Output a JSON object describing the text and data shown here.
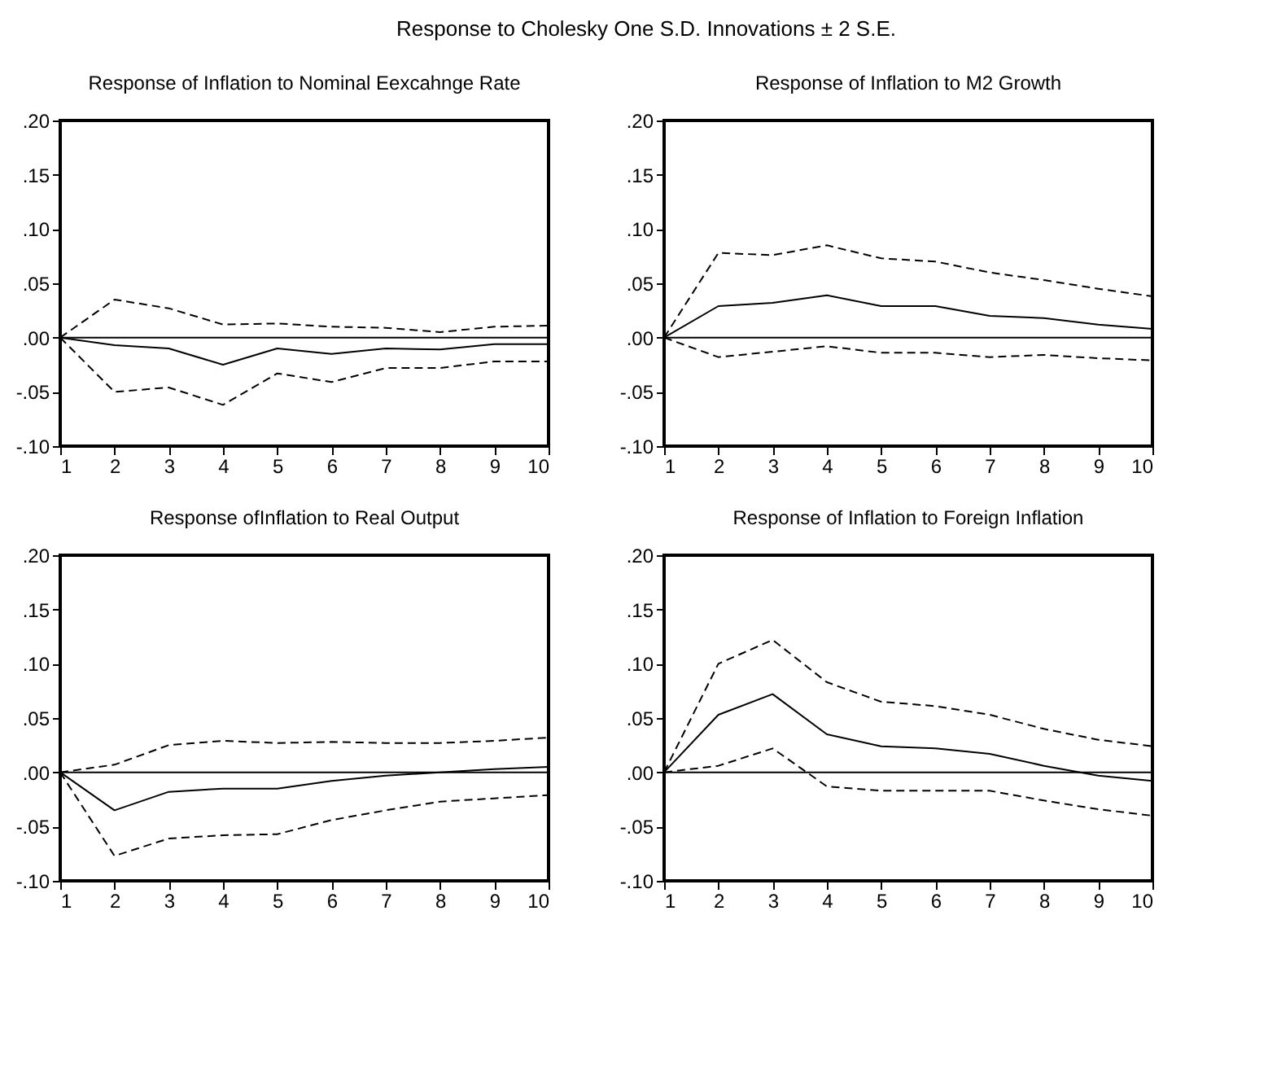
{
  "chart_data": [
    {
      "type": "other",
      "title": "Response to Cholesky One S.D. Innovations ± 2 S.E."
    },
    {
      "type": "line",
      "title": "Response of Inflation to Nominal Eexcahnge Rate",
      "x": [
        1,
        2,
        3,
        4,
        5,
        6,
        7,
        8,
        9,
        10
      ],
      "xlim": [
        1,
        10
      ],
      "xticks": [
        1,
        2,
        3,
        4,
        5,
        6,
        7,
        8,
        9,
        10
      ],
      "ylim": [
        -0.1,
        0.2
      ],
      "yticks": [
        {
          "value": -0.1,
          "label": "-.10"
        },
        {
          "value": -0.05,
          "label": "-.05"
        },
        {
          "value": 0,
          "label": ".00"
        },
        {
          "value": 0.05,
          "label": ".05"
        },
        {
          "value": 0.1,
          "label": ".10"
        },
        {
          "value": 0.15,
          "label": ".15"
        },
        {
          "value": 0.2,
          "label": ".20"
        }
      ],
      "grid": false,
      "marker": "none",
      "series": [
        {
          "color": "#000000",
          "line_style": "solid",
          "values": [
            0,
            -0.007,
            -0.01,
            -0.025,
            -0.01,
            -0.015,
            -0.01,
            -0.011,
            -0.006,
            -0.006
          ]
        },
        {
          "color": "#000000",
          "line_style": "dashed",
          "values": [
            0,
            0.035,
            0.027,
            0.012,
            0.013,
            0.01,
            0.009,
            0.005,
            0.01,
            0.011
          ]
        },
        {
          "color": "#000000",
          "line_style": "dashed",
          "values": [
            0,
            -0.05,
            -0.046,
            -0.062,
            -0.033,
            -0.041,
            -0.028,
            -0.028,
            -0.022,
            -0.022
          ]
        }
      ],
      "ref_lines": [
        {
          "axis": "y",
          "value": 0,
          "color": "#000000"
        }
      ]
    },
    {
      "type": "line",
      "title": "Response of Inflation to M2 Growth",
      "x": [
        1,
        2,
        3,
        4,
        5,
        6,
        7,
        8,
        9,
        10
      ],
      "xlim": [
        1,
        10
      ],
      "xticks": [
        1,
        2,
        3,
        4,
        5,
        6,
        7,
        8,
        9,
        10
      ],
      "ylim": [
        -0.1,
        0.2
      ],
      "yticks": [
        {
          "value": -0.1,
          "label": "-.10"
        },
        {
          "value": -0.05,
          "label": "-.05"
        },
        {
          "value": 0,
          "label": ".00"
        },
        {
          "value": 0.05,
          "label": ".05"
        },
        {
          "value": 0.1,
          "label": ".10"
        },
        {
          "value": 0.15,
          "label": ".15"
        },
        {
          "value": 0.2,
          "label": ".20"
        }
      ],
      "grid": false,
      "marker": "none",
      "series": [
        {
          "color": "#000000",
          "line_style": "solid",
          "values": [
            0,
            0.029,
            0.032,
            0.039,
            0.029,
            0.029,
            0.02,
            0.018,
            0.012,
            0.008
          ]
        },
        {
          "color": "#000000",
          "line_style": "dashed",
          "values": [
            0,
            0.078,
            0.076,
            0.085,
            0.073,
            0.07,
            0.06,
            0.053,
            0.045,
            0.038
          ]
        },
        {
          "color": "#000000",
          "line_style": "dashed",
          "values": [
            0,
            -0.018,
            -0.013,
            -0.008,
            -0.014,
            -0.014,
            -0.018,
            -0.016,
            -0.019,
            -0.021
          ]
        }
      ],
      "ref_lines": [
        {
          "axis": "y",
          "value": 0,
          "color": "#000000"
        }
      ]
    },
    {
      "type": "line",
      "title": "Response ofInflation to Real Output",
      "x": [
        1,
        2,
        3,
        4,
        5,
        6,
        7,
        8,
        9,
        10
      ],
      "xlim": [
        1,
        10
      ],
      "xticks": [
        1,
        2,
        3,
        4,
        5,
        6,
        7,
        8,
        9,
        10
      ],
      "ylim": [
        -0.1,
        0.2
      ],
      "yticks": [
        {
          "value": -0.1,
          "label": "-.10"
        },
        {
          "value": -0.05,
          "label": "-.05"
        },
        {
          "value": 0,
          "label": ".00"
        },
        {
          "value": 0.05,
          "label": ".05"
        },
        {
          "value": 0.1,
          "label": ".10"
        },
        {
          "value": 0.15,
          "label": ".15"
        },
        {
          "value": 0.2,
          "label": ".20"
        }
      ],
      "grid": false,
      "marker": "none",
      "series": [
        {
          "color": "#000000",
          "line_style": "solid",
          "values": [
            0,
            -0.035,
            -0.018,
            -0.015,
            -0.015,
            -0.008,
            -0.003,
            0.0,
            0.003,
            0.005
          ]
        },
        {
          "color": "#000000",
          "line_style": "dashed",
          "values": [
            0,
            0.007,
            0.025,
            0.029,
            0.027,
            0.028,
            0.027,
            0.027,
            0.029,
            0.032
          ]
        },
        {
          "color": "#000000",
          "line_style": "dashed",
          "values": [
            0,
            -0.077,
            -0.061,
            -0.058,
            -0.057,
            -0.044,
            -0.035,
            -0.027,
            -0.024,
            -0.021
          ]
        }
      ],
      "ref_lines": [
        {
          "axis": "y",
          "value": 0,
          "color": "#000000"
        }
      ]
    },
    {
      "type": "line",
      "title": "Response of Inflation to Foreign Inflation",
      "x": [
        1,
        2,
        3,
        4,
        5,
        6,
        7,
        8,
        9,
        10
      ],
      "xlim": [
        1,
        10
      ],
      "xticks": [
        1,
        2,
        3,
        4,
        5,
        6,
        7,
        8,
        9,
        10
      ],
      "ylim": [
        -0.1,
        0.2
      ],
      "yticks": [
        {
          "value": -0.1,
          "label": "-.10"
        },
        {
          "value": -0.05,
          "label": "-.05"
        },
        {
          "value": 0,
          "label": ".00"
        },
        {
          "value": 0.05,
          "label": ".05"
        },
        {
          "value": 0.1,
          "label": ".10"
        },
        {
          "value": 0.15,
          "label": ".15"
        },
        {
          "value": 0.2,
          "label": ".20"
        }
      ],
      "grid": false,
      "marker": "none",
      "series": [
        {
          "color": "#000000",
          "line_style": "solid",
          "values": [
            0,
            0.053,
            0.072,
            0.035,
            0.024,
            0.022,
            0.017,
            0.006,
            -0.003,
            -0.008
          ]
        },
        {
          "color": "#000000",
          "line_style": "dashed",
          "values": [
            0,
            0.1,
            0.122,
            0.083,
            0.065,
            0.061,
            0.053,
            0.04,
            0.03,
            0.024
          ]
        },
        {
          "color": "#000000",
          "line_style": "dashed",
          "values": [
            0,
            0.006,
            0.022,
            -0.013,
            -0.017,
            -0.017,
            -0.017,
            -0.026,
            -0.034,
            -0.04
          ]
        }
      ],
      "ref_lines": [
        {
          "axis": "y",
          "value": 0,
          "color": "#000000"
        }
      ]
    }
  ]
}
